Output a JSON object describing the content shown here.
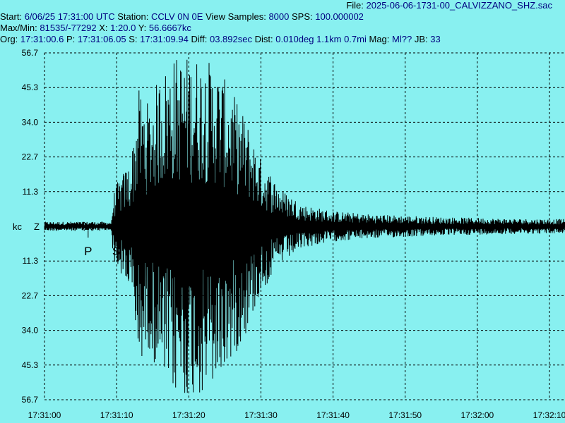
{
  "header": {
    "file_label": "File:",
    "file_name": "2025-06-06-1731-00_CALVIZZANO_SHZ.sac",
    "start_label": "Start:",
    "start_value": "6/06/25 17:31:00 UTC",
    "station_label": "Station:",
    "station_value": "CCLV 0N 0E",
    "view_label": "View Samples:",
    "view_value": "8000",
    "sps_label": "SPS:",
    "sps_value": "100.000002",
    "maxmin_label": "Max/Min:",
    "maxmin_value": "81535/-77292",
    "x_label": "X:",
    "x_value": "1:20.0",
    "y_label": "Y:",
    "y_value": "56.6667kc",
    "org_label": "Org:",
    "org_value": "17:31:00.6",
    "p_label": "P:",
    "p_value": "17:31:06.05",
    "s_label": "S:",
    "s_value": "17:31:09.94",
    "diff_label": "Diff:",
    "diff_value": "03.892sec",
    "dist_label": "Dist:",
    "dist_value": "0.010deg 1.1km 0.7mi",
    "mag_label": "Mag:",
    "mag_value": "Ml??",
    "jb_label": "JB:",
    "jb_value": "33"
  },
  "chart_data": {
    "type": "line",
    "title": "",
    "xlabel": "",
    "ylabel": "kc",
    "channel": "Z",
    "x_ticks": [
      "17:31:00",
      "17:31:10",
      "17:31:20",
      "17:31:30",
      "17:31:40",
      "17:31:50",
      "17:32:00",
      "17:32:10"
    ],
    "y_ticks_top": [
      "56.7",
      "45.3",
      "34.0",
      "22.7",
      "11.3"
    ],
    "y_ticks_bottom": [
      "11.3",
      "22.7",
      "34.0",
      "45.3",
      "56.7"
    ],
    "y_center_label": "kc",
    "ylim": [
      -56.7,
      56.7
    ],
    "x_range_seconds": [
      0,
      80
    ],
    "grid": true,
    "picks": [
      {
        "label": "P",
        "time_seconds": 6.05
      },
      {
        "label": "S",
        "time_seconds": 9.94
      }
    ],
    "envelope": [
      {
        "t": 0,
        "amp": 1.5
      },
      {
        "t": 9.3,
        "amp": 1.5
      },
      {
        "t": 9.5,
        "amp": 10
      },
      {
        "t": 10,
        "amp": 14
      },
      {
        "t": 12,
        "amp": 22
      },
      {
        "t": 13,
        "amp": 45
      },
      {
        "t": 14.5,
        "amp": 40
      },
      {
        "t": 16,
        "amp": 50
      },
      {
        "t": 18,
        "amp": 56
      },
      {
        "t": 20,
        "amp": 56
      },
      {
        "t": 22,
        "amp": 56
      },
      {
        "t": 24,
        "amp": 52
      },
      {
        "t": 26,
        "amp": 44
      },
      {
        "t": 28,
        "amp": 35
      },
      {
        "t": 30,
        "amp": 22
      },
      {
        "t": 33,
        "amp": 12
      },
      {
        "t": 36,
        "amp": 7
      },
      {
        "t": 40,
        "amp": 5
      },
      {
        "t": 45,
        "amp": 4
      },
      {
        "t": 55,
        "amp": 3
      },
      {
        "t": 65,
        "amp": 2.5
      },
      {
        "t": 80,
        "amp": 2.2
      }
    ],
    "colors": {
      "background": "#88F0F0",
      "trace": "#000000",
      "grid": "#000000",
      "header_text": "#000080"
    }
  }
}
